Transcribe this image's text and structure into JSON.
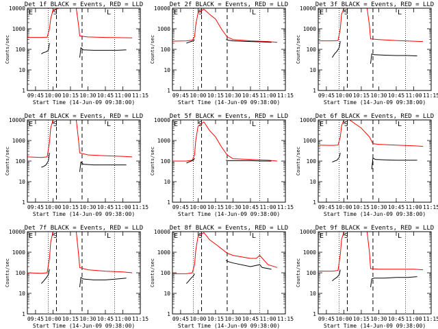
{
  "figure": {
    "common_xlabel": "Start Time (14-Jun-09 09:38:00)",
    "x_ticks": [
      "09:45",
      "10:00",
      "10:15",
      "10:30",
      "10:45",
      "11:00",
      "11:15"
    ],
    "y_ticks": [
      "1",
      "10",
      "100",
      "1000",
      "10000"
    ],
    "ylabel": "Counts/sec",
    "colors": {
      "events": "#000000",
      "lld": "#ff0000",
      "axes": "#000000"
    }
  },
  "chart_data": [
    {
      "type": "line",
      "title": "Det 1f BLACK = Events, RED = LLD",
      "xlabel": "Start Time (14-Jun-09 09:38:00)",
      "ylabel": "Counts/sec",
      "ylim": [
        1,
        10000
      ],
      "yscale": "log",
      "xlim": [
        "09:38",
        "11:15"
      ],
      "markers": {
        "dotted": [
          "09:56",
          "10:53"
        ],
        "dashed": [
          "10:03",
          "10:25"
        ],
        "labels": {
          "E": "09:38",
          "S": "09:59",
          "L": "10:45"
        }
      },
      "series": [
        {
          "name": "LLD",
          "color": "#ff0000",
          "x": [
            "09:38",
            "09:50",
            "09:55",
            "09:57",
            "09:58",
            "10:00",
            "10:05",
            "10:15",
            "10:20",
            "10:22",
            "10:23",
            "10:30",
            "10:45",
            "11:00",
            "11:08"
          ],
          "values": [
            380,
            380,
            390,
            1000,
            3000,
            8000,
            10000,
            10000,
            10000,
            1500,
            450,
            400,
            380,
            370,
            360
          ]
        },
        {
          "name": "Events",
          "color": "#000000",
          "x": [
            "09:50",
            "09:52",
            "09:54",
            "09:56",
            "09:57"
          ],
          "values": [
            60,
            70,
            75,
            90,
            200
          ]
        },
        {
          "name": "Events",
          "color": "#000000",
          "x": [
            "10:23",
            "10:24",
            "10:26",
            "10:35",
            "10:45",
            "10:55",
            "11:03"
          ],
          "values": [
            40,
            120,
            95,
            90,
            90,
            90,
            95
          ]
        }
      ]
    },
    {
      "type": "line",
      "title": "Det 2f BLACK = Events, RED = LLD",
      "xlabel": "Start Time (14-Jun-09 09:38:00)",
      "ylabel": "Counts/sec",
      "ylim": [
        1,
        10000
      ],
      "yscale": "log",
      "xlim": [
        "09:38",
        "11:15"
      ],
      "markers": {
        "dotted": [
          "09:56",
          "10:53"
        ],
        "dashed": [
          "10:03",
          "10:25"
        ],
        "labels": {
          "E": "09:38",
          "S": "09:59",
          "L": "10:45"
        }
      },
      "series": [
        {
          "name": "LLD",
          "color": "#ff0000",
          "x": [
            "09:38",
            "09:50",
            "09:55",
            "09:57",
            "09:58",
            "10:00",
            "10:05",
            "10:10",
            "10:15",
            "10:20",
            "10:25",
            "10:30",
            "10:45",
            "11:00",
            "11:08"
          ],
          "values": [
            250,
            260,
            280,
            400,
            1500,
            6000,
            9000,
            5000,
            3000,
            1000,
            400,
            300,
            260,
            240,
            220
          ]
        },
        {
          "name": "Events",
          "color": "#000000",
          "x": [
            "09:50",
            "09:52",
            "09:54",
            "09:56",
            "09:57"
          ],
          "values": [
            200,
            220,
            240,
            260,
            300
          ]
        },
        {
          "name": "Events",
          "color": "#000000",
          "x": [
            "10:24",
            "10:26",
            "10:30",
            "10:45",
            "10:55",
            "11:03"
          ],
          "values": [
            300,
            280,
            260,
            240,
            230,
            220
          ]
        }
      ]
    },
    {
      "type": "line",
      "title": "Det 3f BLACK = Events, RED = LLD",
      "xlabel": "Start Time (14-Jun-09 09:38:00)",
      "ylabel": "Counts/sec",
      "ylim": [
        1,
        10000
      ],
      "yscale": "log",
      "xlim": [
        "09:38",
        "11:15"
      ],
      "markers": {
        "dotted": [
          "09:56",
          "10:53"
        ],
        "dashed": [
          "10:03",
          "10:25"
        ],
        "labels": {
          "E": "09:38",
          "S": "09:59",
          "L": "10:45"
        }
      },
      "series": [
        {
          "name": "LLD",
          "color": "#ff0000",
          "x": [
            "09:38",
            "09:50",
            "09:55",
            "09:57",
            "09:58",
            "10:00",
            "10:05",
            "10:15",
            "10:20",
            "10:22",
            "10:23",
            "10:30",
            "10:45",
            "11:00",
            "11:08"
          ],
          "values": [
            260,
            260,
            270,
            1000,
            5000,
            10000,
            10000,
            10000,
            10000,
            1500,
            320,
            300,
            270,
            250,
            240
          ]
        },
        {
          "name": "Events",
          "color": "#000000",
          "x": [
            "09:50",
            "09:52",
            "09:54",
            "09:56",
            "09:57"
          ],
          "values": [
            40,
            60,
            80,
            120,
            250
          ]
        },
        {
          "name": "Events",
          "color": "#000000",
          "x": [
            "10:23",
            "10:24",
            "10:26",
            "10:35",
            "10:45",
            "10:55",
            "11:03"
          ],
          "values": [
            20,
            60,
            55,
            52,
            50,
            50,
            48
          ]
        }
      ]
    },
    {
      "type": "line",
      "title": "Det 4f BLACK = Events, RED = LLD",
      "xlabel": "Start Time (14-Jun-09 09:38:00)",
      "ylabel": "Counts/sec",
      "ylim": [
        1,
        10000
      ],
      "yscale": "log",
      "xlim": [
        "09:38",
        "11:15"
      ],
      "markers": {
        "dotted": [
          "09:56",
          "10:53"
        ],
        "dashed": [
          "10:03",
          "10:25"
        ],
        "labels": {
          "E": "09:38",
          "S": "09:59",
          "L": "10:45"
        }
      },
      "series": [
        {
          "name": "LLD",
          "color": "#ff0000",
          "x": [
            "09:38",
            "09:50",
            "09:55",
            "09:57",
            "09:58",
            "10:00",
            "10:05",
            "10:15",
            "10:20",
            "10:22",
            "10:23",
            "10:30",
            "10:45",
            "11:00",
            "11:08"
          ],
          "values": [
            160,
            150,
            160,
            800,
            4000,
            10000,
            10000,
            10000,
            10000,
            1000,
            250,
            200,
            180,
            170,
            160
          ]
        },
        {
          "name": "Events",
          "color": "#000000",
          "x": [
            "09:50",
            "09:52",
            "09:54",
            "09:56",
            "09:57"
          ],
          "values": [
            50,
            55,
            65,
            100,
            250
          ]
        },
        {
          "name": "Events",
          "color": "#000000",
          "x": [
            "10:23",
            "10:24",
            "10:26",
            "10:35",
            "10:45",
            "10:55",
            "11:03"
          ],
          "values": [
            30,
            90,
            70,
            65,
            65,
            65,
            65
          ]
        }
      ]
    },
    {
      "type": "line",
      "title": "Det 5f BLACK = Events, RED = LLD",
      "xlabel": "Start Time (14-Jun-09 09:38:00)",
      "ylabel": "Counts/sec",
      "ylim": [
        1,
        10000
      ],
      "yscale": "log",
      "xlim": [
        "09:38",
        "11:15"
      ],
      "markers": {
        "dotted": [
          "09:56",
          "10:53"
        ],
        "dashed": [
          "10:03",
          "10:25"
        ],
        "labels": {
          "E": "09:38",
          "S": "09:59",
          "L": "10:45"
        }
      },
      "series": [
        {
          "name": "LLD",
          "color": "#ff0000",
          "x": [
            "09:38",
            "09:50",
            "09:55",
            "09:57",
            "09:58",
            "10:00",
            "10:05",
            "10:10",
            "10:15",
            "10:20",
            "10:25",
            "10:30",
            "10:45",
            "11:00",
            "11:08"
          ],
          "values": [
            100,
            100,
            110,
            200,
            1000,
            5000,
            8000,
            3000,
            1500,
            500,
            200,
            130,
            120,
            110,
            100
          ]
        },
        {
          "name": "Events",
          "color": "#000000",
          "x": [
            "09:50",
            "09:52",
            "09:54",
            "09:56",
            "09:57"
          ],
          "values": [
            80,
            90,
            100,
            110,
            140
          ]
        },
        {
          "name": "Events",
          "color": "#000000",
          "x": [
            "10:24",
            "10:26",
            "10:30",
            "10:45",
            "10:55",
            "11:03"
          ],
          "values": [
            110,
            105,
            105,
            105,
            100,
            100
          ]
        }
      ]
    },
    {
      "type": "line",
      "title": "Det 6f BLACK = Events, RED = LLD",
      "xlabel": "Start Time (14-Jun-09 09:38:00)",
      "ylabel": "Counts/sec",
      "ylim": [
        1,
        10000
      ],
      "yscale": "log",
      "xlim": [
        "09:38",
        "11:15"
      ],
      "markers": {
        "dotted": [
          "09:56",
          "10:53"
        ],
        "dashed": [
          "10:03",
          "10:25"
        ],
        "labels": {
          "E": "09:38",
          "S": "09:59",
          "L": "10:45"
        }
      },
      "series": [
        {
          "name": "LLD",
          "color": "#ff0000",
          "x": [
            "09:38",
            "09:50",
            "09:55",
            "09:57",
            "09:58",
            "10:00",
            "10:05",
            "10:15",
            "10:20",
            "10:22",
            "10:25",
            "10:30",
            "10:45",
            "11:00",
            "11:08"
          ],
          "values": [
            600,
            580,
            600,
            1500,
            5000,
            10000,
            10000,
            4000,
            2000,
            1500,
            700,
            650,
            600,
            550,
            520
          ]
        },
        {
          "name": "Events",
          "color": "#000000",
          "x": [
            "09:50",
            "09:52",
            "09:54",
            "09:56",
            "09:57"
          ],
          "values": [
            90,
            100,
            110,
            150,
            250
          ]
        },
        {
          "name": "Events",
          "color": "#000000",
          "x": [
            "10:24",
            "10:25",
            "10:27",
            "10:35",
            "10:45",
            "10:55",
            "11:03"
          ],
          "values": [
            40,
            140,
            120,
            115,
            110,
            110,
            110
          ]
        }
      ]
    },
    {
      "type": "line",
      "title": "Det 7f BLACK = Events, RED = LLD",
      "xlabel": "Start Time (14-Jun-09 09:38:00)",
      "ylabel": "Counts/sec",
      "ylim": [
        1,
        10000
      ],
      "yscale": "log",
      "xlim": [
        "09:38",
        "11:15"
      ],
      "markers": {
        "dotted": [
          "09:56",
          "10:53"
        ],
        "dashed": [
          "10:03",
          "10:25"
        ],
        "labels": {
          "E": "09:38",
          "S": "09:59",
          "L": "10:45"
        }
      },
      "series": [
        {
          "name": "LLD",
          "color": "#ff0000",
          "x": [
            "09:38",
            "09:50",
            "09:55",
            "09:57",
            "09:58",
            "10:00",
            "10:05",
            "10:15",
            "10:20",
            "10:22",
            "10:23",
            "10:30",
            "10:45",
            "11:00",
            "11:08"
          ],
          "values": [
            100,
            95,
            100,
            500,
            3000,
            10000,
            10000,
            10000,
            10000,
            800,
            180,
            140,
            120,
            110,
            100
          ]
        },
        {
          "name": "Events",
          "color": "#000000",
          "x": [
            "09:50",
            "09:52",
            "09:54",
            "09:56",
            "09:57"
          ],
          "values": [
            30,
            40,
            55,
            80,
            150
          ]
        },
        {
          "name": "Events",
          "color": "#000000",
          "x": [
            "10:23",
            "10:24",
            "10:26",
            "10:35",
            "10:45",
            "10:55",
            "11:03"
          ],
          "values": [
            20,
            60,
            50,
            45,
            45,
            50,
            55
          ]
        }
      ]
    },
    {
      "type": "line",
      "title": "Det 8f BLACK = Events, RED = LLD",
      "xlabel": "Start Time (14-Jun-09 09:38:00)",
      "ylabel": "Counts/sec",
      "ylim": [
        1,
        10000
      ],
      "yscale": "log",
      "xlim": [
        "09:38",
        "11:15"
      ],
      "markers": {
        "dotted": [
          "09:56",
          "10:53"
        ],
        "dashed": [
          "10:03",
          "10:25"
        ],
        "labels": {
          "E": "09:38",
          "S": "09:59",
          "L": "10:45"
        }
      },
      "series": [
        {
          "name": "LLD",
          "color": "#ff0000",
          "x": [
            "09:38",
            "09:50",
            "09:55",
            "09:57",
            "09:58",
            "10:00",
            "10:05",
            "10:10",
            "10:15",
            "10:20",
            "10:25",
            "10:30",
            "10:45",
            "10:50",
            "10:53",
            "11:00",
            "11:08"
          ],
          "values": [
            90,
            90,
            100,
            250,
            1200,
            6000,
            9000,
            4000,
            2500,
            1500,
            900,
            700,
            500,
            500,
            700,
            250,
            180
          ]
        },
        {
          "name": "Events",
          "color": "#000000",
          "x": [
            "09:50",
            "09:52",
            "09:54",
            "09:56",
            "09:57"
          ],
          "values": [
            30,
            40,
            55,
            70,
            90
          ]
        },
        {
          "name": "Events",
          "color": "#000000",
          "x": [
            "10:24",
            "10:26",
            "10:30",
            "10:45",
            "10:53",
            "10:55",
            "11:03"
          ],
          "values": [
            400,
            350,
            300,
            200,
            250,
            180,
            150
          ]
        }
      ]
    },
    {
      "type": "line",
      "title": "Det 9f BLACK = Events, RED = LLD",
      "xlabel": "Start Time (14-Jun-09 09:38:00)",
      "ylabel": "Counts/sec",
      "ylim": [
        1,
        10000
      ],
      "yscale": "log",
      "xlim": [
        "09:38",
        "11:15"
      ],
      "markers": {
        "dotted": [
          "09:56",
          "10:53"
        ],
        "dashed": [
          "10:03",
          "10:25"
        ],
        "labels": {
          "E": "09:38",
          "S": "09:59",
          "L": "10:45"
        }
      },
      "series": [
        {
          "name": "LLD",
          "color": "#ff0000",
          "x": [
            "09:38",
            "09:50",
            "09:55",
            "09:57",
            "09:58",
            "10:00",
            "10:05",
            "10:15",
            "10:20",
            "10:22",
            "10:23",
            "10:30",
            "10:45",
            "11:00",
            "11:08"
          ],
          "values": [
            120,
            120,
            130,
            800,
            4000,
            10000,
            10000,
            10000,
            10000,
            1000,
            160,
            150,
            150,
            150,
            140
          ]
        },
        {
          "name": "Events",
          "color": "#000000",
          "x": [
            "09:50",
            "09:52",
            "09:54",
            "09:56",
            "09:57"
          ],
          "values": [
            40,
            50,
            60,
            80,
            140
          ]
        },
        {
          "name": "Events",
          "color": "#000000",
          "x": [
            "10:23",
            "10:24",
            "10:26",
            "10:35",
            "10:45",
            "10:55",
            "11:03"
          ],
          "values": [
            20,
            50,
            55,
            55,
            60,
            60,
            65
          ]
        }
      ]
    }
  ]
}
